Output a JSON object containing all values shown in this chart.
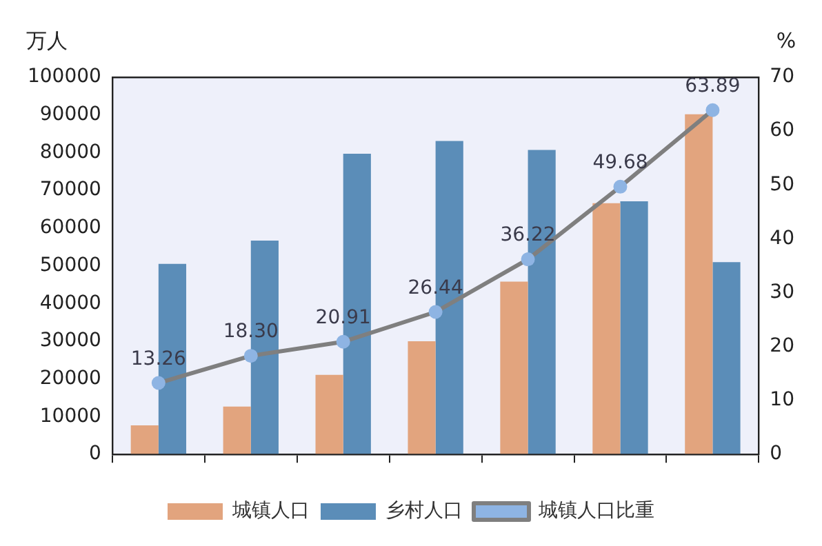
{
  "chart_data": {
    "type": "bar",
    "categories": [
      null,
      null,
      null,
      null,
      null,
      null,
      null
    ],
    "series": [
      {
        "name": "城镇人口",
        "color": "#e2a47e",
        "values": [
          7700,
          12700,
          21100,
          30000,
          45800,
          66600,
          90200
        ]
      },
      {
        "name": "乡村人口",
        "color": "#5b8db8",
        "values": [
          50500,
          56700,
          79700,
          83100,
          80700,
          67100,
          51000
        ]
      },
      {
        "name": "城镇人口比重",
        "type": "line",
        "axis": "y2",
        "color": "#7f7f7f",
        "marker": "circle",
        "values": [
          13.26,
          18.3,
          20.91,
          26.44,
          36.22,
          49.68,
          63.89
        ],
        "value_labels": [
          "13.26",
          "18.30",
          "20.91",
          "26.44",
          "36.22",
          "49.68",
          "63.89"
        ]
      }
    ],
    "ylabel": "万人",
    "y2label": "%",
    "ylim": [
      0,
      100000
    ],
    "yticks": [
      0,
      10000,
      20000,
      30000,
      40000,
      50000,
      60000,
      70000,
      80000,
      90000,
      100000
    ],
    "y2lim": [
      0,
      70
    ],
    "y2ticks": [
      0,
      10,
      20,
      30,
      40,
      50,
      60,
      70
    ],
    "grid": false,
    "legend": "bottom"
  }
}
